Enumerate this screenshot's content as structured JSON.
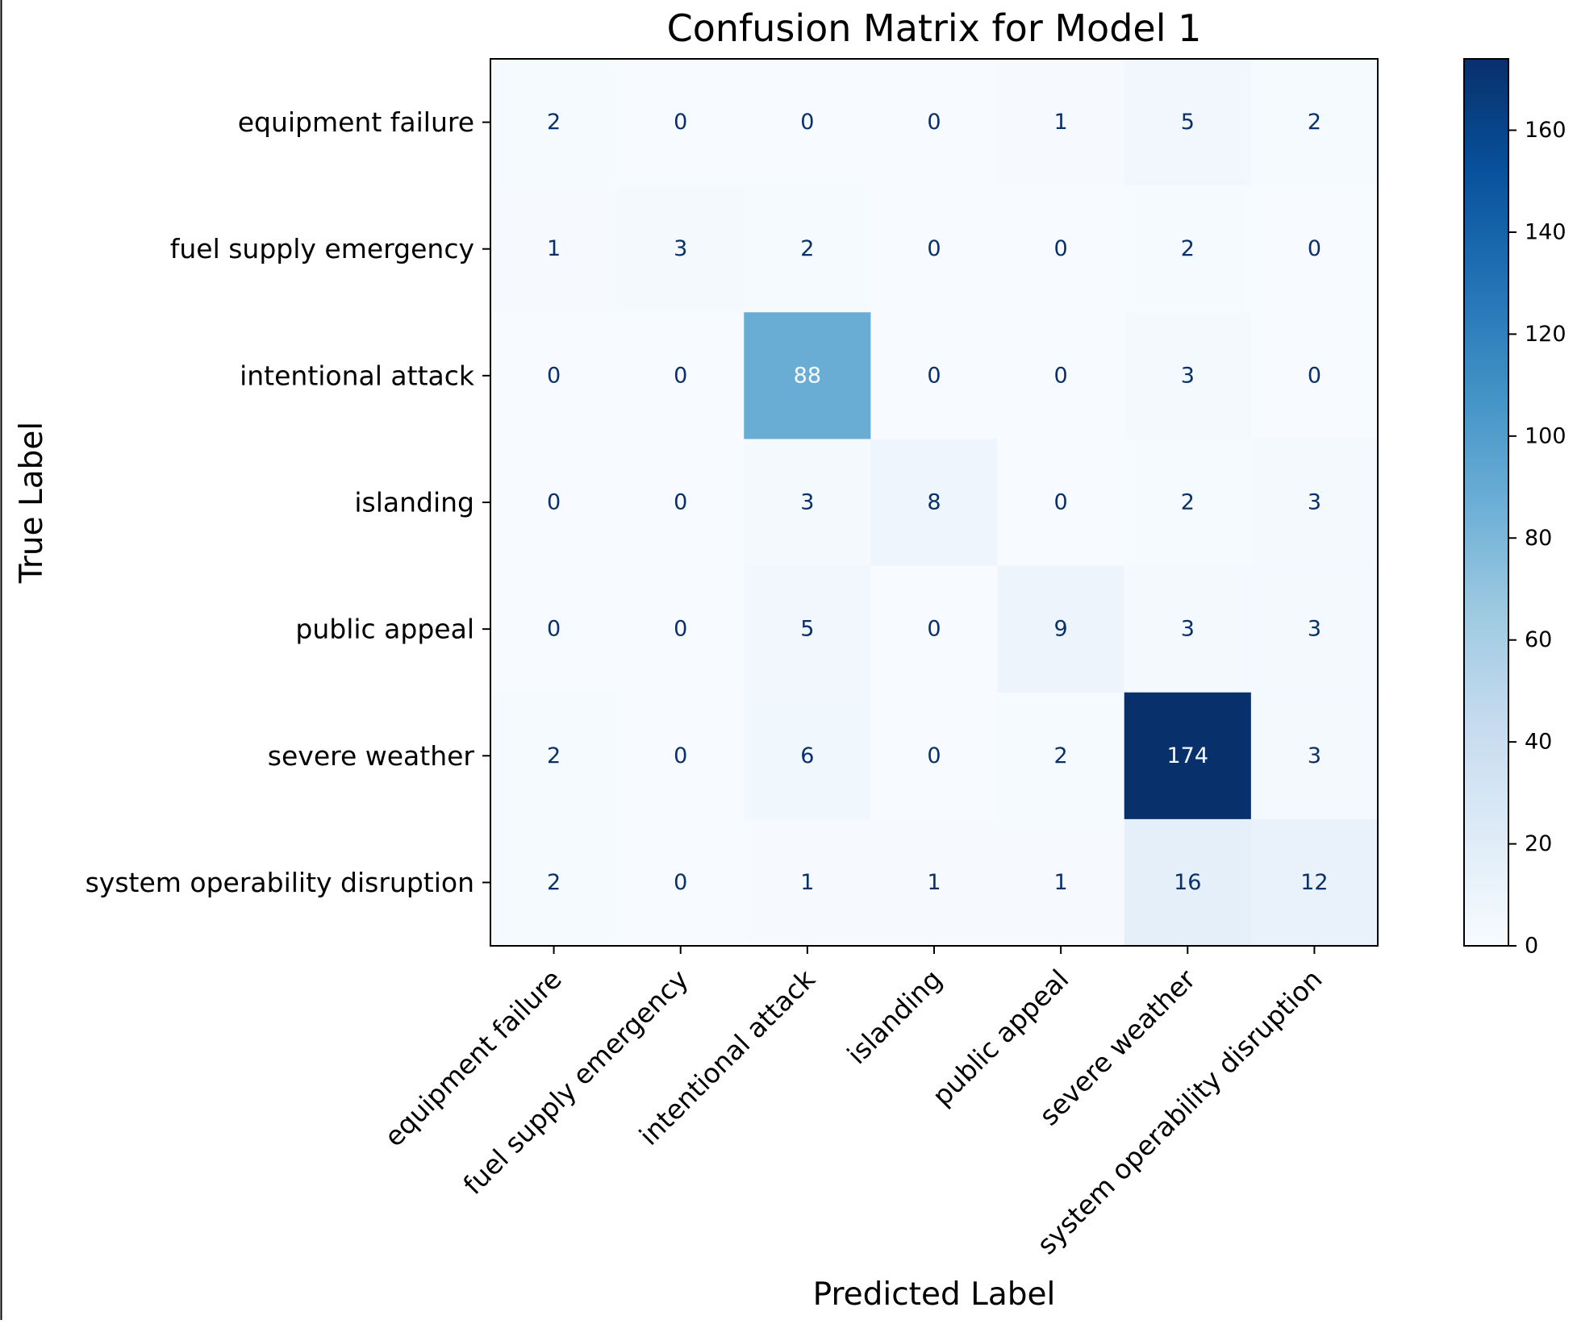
{
  "chart_data": {
    "type": "heatmap",
    "title": "Confusion Matrix for Model 1",
    "xlabel": "Predicted Label",
    "ylabel": "True Label",
    "x_categories": [
      "equipment failure",
      "fuel supply emergency",
      "intentional attack",
      "islanding",
      "public appeal",
      "severe weather",
      "system operability disruption"
    ],
    "y_categories": [
      "equipment failure",
      "fuel supply emergency",
      "intentional attack",
      "islanding",
      "public appeal",
      "severe weather",
      "system operability disruption"
    ],
    "values": [
      [
        2,
        0,
        0,
        0,
        1,
        5,
        2
      ],
      [
        1,
        3,
        2,
        0,
        0,
        2,
        0
      ],
      [
        0,
        0,
        88,
        0,
        0,
        3,
        0
      ],
      [
        0,
        0,
        3,
        8,
        0,
        2,
        3
      ],
      [
        0,
        0,
        5,
        0,
        9,
        3,
        3
      ],
      [
        2,
        0,
        6,
        0,
        2,
        174,
        3
      ],
      [
        2,
        0,
        1,
        1,
        1,
        16,
        12
      ]
    ],
    "colormap": "Blues",
    "value_range": [
      0,
      174
    ],
    "colorbar_ticks": [
      0,
      20,
      40,
      60,
      80,
      100,
      120,
      140,
      160
    ],
    "colors": {
      "low": "#f7fbff",
      "high": "#08306b",
      "text_dark": "#08306b",
      "text_light": "#f7fbff"
    }
  }
}
